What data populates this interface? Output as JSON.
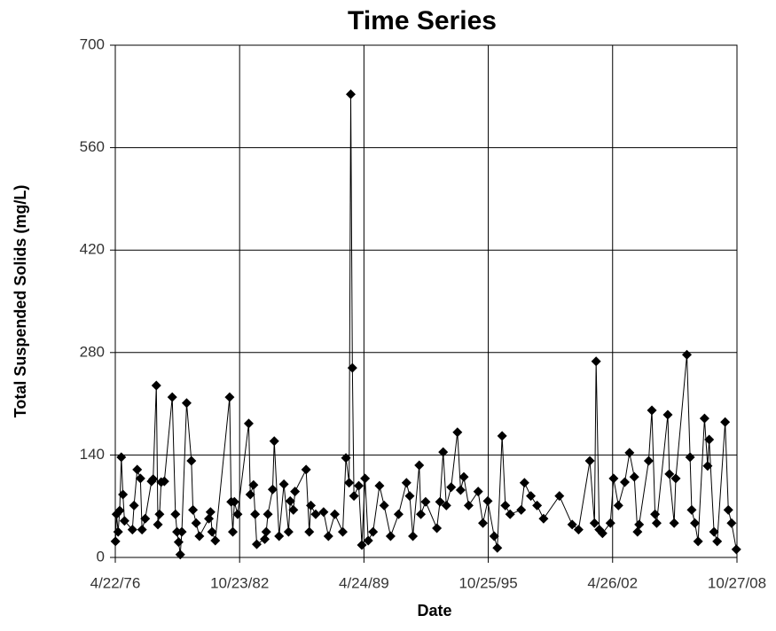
{
  "chart_data": {
    "type": "line",
    "title": "Time Series",
    "x_label": "Date",
    "y_label": "Total Suspended Solids (mg/L)",
    "x": [
      "1976-04-25",
      "1976-05-15",
      "1976-06-15",
      "1976-07-15",
      "1976-08-15",
      "1976-09-15",
      "1976-10-15",
      "1977-03-15",
      "1977-04-15",
      "1977-06-15",
      "1977-08-15",
      "1977-09-15",
      "1977-11-15",
      "1978-03-15",
      "1978-04-15",
      "1978-06-15",
      "1978-07-15",
      "1978-08-15",
      "1978-09-15",
      "1978-11-15",
      "1979-04-15",
      "1979-06-15",
      "1979-07-15",
      "1979-08-15",
      "1979-09-15",
      "1979-10-15",
      "1980-01-15",
      "1980-04-15",
      "1980-05-15",
      "1980-07-15",
      "1980-09-15",
      "1981-03-15",
      "1981-04-15",
      "1981-05-15",
      "1981-07-15",
      "1982-04-15",
      "1982-05-15",
      "1982-06-15",
      "1982-07-15",
      "1982-09-15",
      "1983-04-15",
      "1983-05-15",
      "1983-07-15",
      "1983-08-15",
      "1983-09-15",
      "1984-02-15",
      "1984-03-15",
      "1984-04-15",
      "1984-07-15",
      "1984-08-15",
      "1984-11-15",
      "1985-02-15",
      "1985-05-15",
      "1985-06-15",
      "1985-08-15",
      "1985-09-15",
      "1986-04-15",
      "1986-06-15",
      "1986-07-15",
      "1986-10-15",
      "1987-03-15",
      "1987-06-15",
      "1987-10-15",
      "1988-03-15",
      "1988-05-15",
      "1988-07-15",
      "1988-08-15",
      "1988-09-15",
      "1988-10-15",
      "1989-01-15",
      "1989-03-15",
      "1989-05-15",
      "1989-07-15",
      "1989-10-15",
      "1990-02-15",
      "1990-05-15",
      "1990-09-15",
      "1991-02-15",
      "1991-07-15",
      "1991-09-15",
      "1991-11-15",
      "1992-03-15",
      "1992-04-15",
      "1992-07-15",
      "1993-02-15",
      "1993-04-15",
      "1993-06-15",
      "1993-08-15",
      "1993-11-15",
      "1994-03-15",
      "1994-05-15",
      "1994-07-15",
      "1994-10-15",
      "1995-04-15",
      "1995-07-15",
      "1995-10-15",
      "1996-02-15",
      "1996-04-15",
      "1996-07-15",
      "1996-09-15",
      "1996-12-15",
      "1997-07-15",
      "1997-09-15",
      "1998-01-15",
      "1998-05-15",
      "1998-09-15",
      "1999-07-15",
      "2000-03-15",
      "2000-07-15",
      "2001-02-15",
      "2001-05-15",
      "2001-06-15",
      "2001-08-15",
      "2001-10-15",
      "2002-03-15",
      "2002-05-15",
      "2002-08-15",
      "2002-12-15",
      "2003-03-15",
      "2003-06-15",
      "2003-08-15",
      "2003-09-15",
      "2004-03-15",
      "2004-05-15",
      "2004-07-15",
      "2004-08-15",
      "2005-03-15",
      "2005-04-15",
      "2005-07-15",
      "2005-08-15",
      "2006-03-15",
      "2006-05-15",
      "2006-06-15",
      "2006-08-15",
      "2006-10-15",
      "2007-02-15",
      "2007-04-15",
      "2007-05-15",
      "2007-08-15",
      "2007-10-15",
      "2008-03-15",
      "2008-05-15",
      "2008-07-15",
      "2008-10-15"
    ],
    "series": [
      {
        "name": "Total Suspended Solids",
        "color": "#000000",
        "values": [
          22,
          59,
          35,
          64,
          137,
          86,
          50,
          38,
          71,
          120,
          108,
          38,
          53,
          104,
          107,
          235,
          45,
          59,
          103,
          104,
          219,
          59,
          35,
          21,
          4,
          35,
          211,
          132,
          65,
          47,
          29,
          53,
          62,
          35,
          23,
          219,
          76,
          35,
          76,
          59,
          183,
          86,
          99,
          59,
          18,
          25,
          35,
          59,
          93,
          159,
          29,
          100,
          35,
          77,
          65,
          90,
          120,
          35,
          71,
          59,
          62,
          29,
          59,
          35,
          136,
          102,
          633,
          259,
          84,
          98,
          17,
          108,
          23,
          35,
          98,
          71,
          29,
          59,
          102,
          84,
          29,
          126,
          59,
          76,
          40,
          76,
          144,
          71,
          96,
          171,
          92,
          110,
          71,
          90,
          47,
          77,
          29,
          13,
          166,
          71,
          59,
          65,
          102,
          84,
          71,
          53,
          84,
          45,
          38,
          132,
          47,
          268,
          38,
          33,
          47,
          108,
          71,
          103,
          143,
          110,
          35,
          45,
          132,
          201,
          59,
          47,
          195,
          114,
          47,
          108,
          277,
          137,
          65,
          47,
          22,
          190,
          125,
          161,
          35,
          22,
          185,
          65,
          47,
          11
        ]
      }
    ],
    "xlim": [
      "1976-04-22",
      "2008-10-27"
    ],
    "xticks": [
      {
        "value": "1976-04-22",
        "label": "4/22/76"
      },
      {
        "value": "1982-10-23",
        "label": "10/23/82"
      },
      {
        "value": "1989-04-24",
        "label": "4/24/89"
      },
      {
        "value": "1995-10-25",
        "label": "10/25/95"
      },
      {
        "value": "2002-04-26",
        "label": "4/26/02"
      },
      {
        "value": "2008-10-27",
        "label": "10/27/08"
      }
    ],
    "ylim": [
      0,
      700
    ],
    "yticks": [
      0,
      140,
      280,
      420,
      560,
      700
    ],
    "grid": true
  }
}
